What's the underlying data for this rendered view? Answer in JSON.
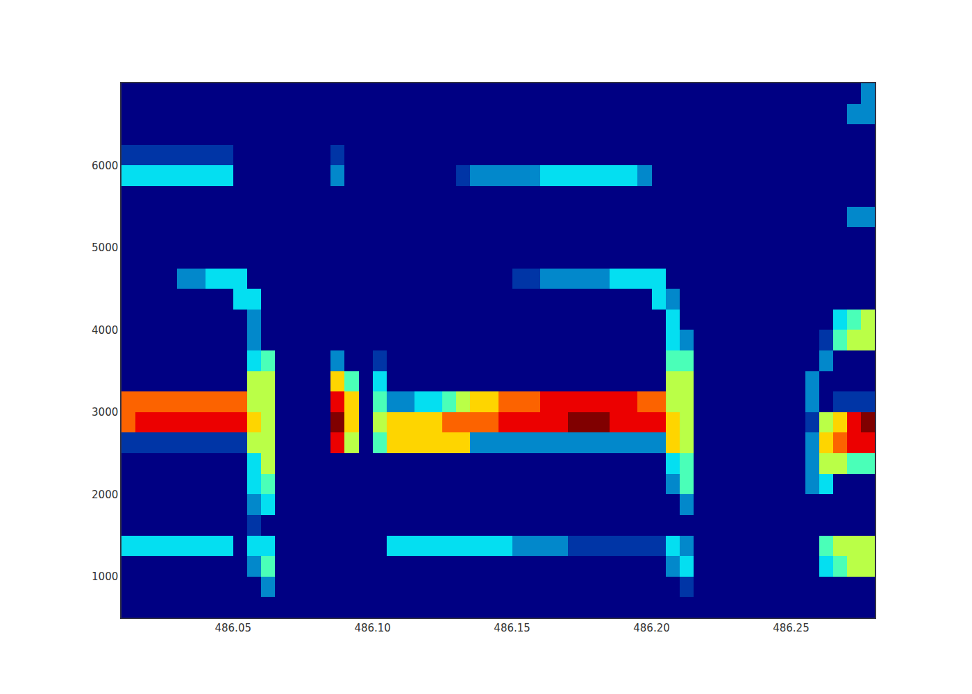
{
  "chart_data": {
    "type": "heatmap",
    "x": [
      486.0125,
      486.0175,
      486.0225,
      486.0275,
      486.0325,
      486.0375,
      486.0425,
      486.0475,
      486.0525,
      486.0575,
      486.0625,
      486.0675,
      486.0725,
      486.0775,
      486.0825,
      486.0875,
      486.0925,
      486.0975,
      486.1025,
      486.1075,
      486.1125,
      486.1175,
      486.1225,
      486.1275,
      486.1325,
      486.1375,
      486.1425,
      486.1475,
      486.1525,
      486.1575,
      486.1625,
      486.1675,
      486.1725,
      486.1775,
      486.1825,
      486.1875,
      486.1925,
      486.1975,
      486.2025,
      486.2075,
      486.2125,
      486.2175,
      486.2225,
      486.2275,
      486.2325,
      486.2375,
      486.2425,
      486.2475,
      486.2525,
      486.2575,
      486.2625,
      486.2675,
      486.2725,
      486.2775
    ],
    "y": [
      625,
      875,
      1125,
      1375,
      1625,
      1875,
      2125,
      2375,
      2625,
      2875,
      3125,
      3375,
      3625,
      3875,
      4125,
      4375,
      4625,
      4875,
      5125,
      5375,
      5625,
      5875,
      6125,
      6375,
      6625,
      6875
    ],
    "z": [
      [
        0,
        0,
        0,
        0,
        0,
        0,
        0,
        0,
        0,
        0,
        0,
        0,
        0,
        0,
        0,
        0,
        0,
        0,
        0,
        0,
        0,
        0,
        0,
        0,
        0,
        0,
        0,
        0,
        0,
        0,
        0,
        0,
        0,
        0,
        0,
        0,
        0,
        0,
        0,
        0,
        0,
        0,
        0,
        0,
        0,
        0,
        0,
        0,
        0,
        0,
        0,
        0,
        0,
        0
      ],
      [
        0,
        0,
        0,
        0,
        0,
        0,
        0,
        0,
        0,
        0,
        2,
        0,
        0,
        0,
        0,
        0,
        0,
        0,
        0,
        0,
        0,
        0,
        0,
        0,
        0,
        0,
        0,
        0,
        0,
        0,
        0,
        0,
        0,
        0,
        0,
        0,
        0,
        0,
        0,
        0,
        1,
        0,
        0,
        0,
        0,
        0,
        0,
        0,
        0,
        0,
        0,
        0,
        0,
        0
      ],
      [
        0,
        0,
        0,
        0,
        0,
        0,
        0,
        0,
        0,
        2,
        4,
        0,
        0,
        0,
        0,
        0,
        0,
        0,
        0,
        0,
        0,
        0,
        0,
        0,
        0,
        0,
        0,
        0,
        0,
        0,
        0,
        0,
        0,
        0,
        0,
        0,
        0,
        0,
        0,
        2,
        3,
        0,
        0,
        0,
        0,
        0,
        0,
        0,
        0,
        0,
        3,
        4,
        5,
        5
      ],
      [
        3,
        3,
        3,
        3,
        3,
        3,
        3,
        3,
        0,
        3,
        3,
        0,
        0,
        0,
        0,
        0,
        0,
        0,
        0,
        3,
        3,
        3,
        3,
        3,
        3,
        3,
        3,
        3,
        2,
        2,
        2,
        2,
        1,
        1,
        1,
        1,
        1,
        1,
        1,
        3,
        2,
        0,
        0,
        0,
        0,
        0,
        0,
        0,
        0,
        0,
        4,
        5,
        5,
        5
      ],
      [
        0,
        0,
        0,
        0,
        0,
        0,
        0,
        0,
        0,
        1,
        0,
        0,
        0,
        0,
        0,
        0,
        0,
        0,
        0,
        0,
        0,
        0,
        0,
        0,
        0,
        0,
        0,
        0,
        0,
        0,
        0,
        0,
        0,
        0,
        0,
        0,
        0,
        0,
        0,
        0,
        0,
        0,
        0,
        0,
        0,
        0,
        0,
        0,
        0,
        0,
        0,
        0,
        0,
        0
      ],
      [
        0,
        0,
        0,
        0,
        0,
        0,
        0,
        0,
        0,
        2,
        3,
        0,
        0,
        0,
        0,
        0,
        0,
        0,
        0,
        0,
        0,
        0,
        0,
        0,
        0,
        0,
        0,
        0,
        0,
        0,
        0,
        0,
        0,
        0,
        0,
        0,
        0,
        0,
        0,
        0,
        2,
        0,
        0,
        0,
        0,
        0,
        0,
        0,
        0,
        0,
        0,
        0,
        0,
        0
      ],
      [
        0,
        0,
        0,
        0,
        0,
        0,
        0,
        0,
        0,
        3,
        4,
        0,
        0,
        0,
        0,
        0,
        0,
        0,
        0,
        0,
        0,
        0,
        0,
        0,
        0,
        0,
        0,
        0,
        0,
        0,
        0,
        0,
        0,
        0,
        0,
        0,
        0,
        0,
        0,
        2,
        4,
        0,
        0,
        0,
        0,
        0,
        0,
        0,
        0,
        2,
        3,
        0,
        0,
        0
      ],
      [
        0,
        0,
        0,
        0,
        0,
        0,
        0,
        0,
        0,
        3,
        5,
        0,
        0,
        0,
        0,
        0,
        0,
        0,
        0,
        0,
        0,
        0,
        0,
        0,
        0,
        0,
        0,
        0,
        0,
        0,
        0,
        0,
        0,
        0,
        0,
        0,
        0,
        0,
        0,
        3,
        4,
        0,
        0,
        0,
        0,
        0,
        0,
        0,
        0,
        2,
        5,
        5,
        4,
        4
      ],
      [
        1,
        1,
        1,
        1,
        1,
        1,
        1,
        1,
        1,
        5,
        5,
        0,
        0,
        0,
        0,
        8,
        5,
        0,
        4,
        6,
        6,
        6,
        6,
        6,
        6,
        2,
        2,
        2,
        2,
        2,
        2,
        2,
        2,
        2,
        2,
        2,
        2,
        2,
        2,
        6,
        5,
        0,
        0,
        0,
        0,
        0,
        0,
        0,
        0,
        2,
        6,
        7,
        8,
        8
      ],
      [
        7,
        8,
        8,
        8,
        8,
        8,
        8,
        8,
        8,
        6,
        5,
        0,
        0,
        0,
        0,
        9,
        6,
        0,
        5,
        6,
        6,
        6,
        6,
        7,
        7,
        7,
        7,
        8,
        8,
        8,
        8,
        8,
        9,
        9,
        9,
        8,
        8,
        8,
        8,
        6,
        5,
        0,
        0,
        0,
        0,
        0,
        0,
        0,
        0,
        1,
        5,
        6,
        8,
        9
      ],
      [
        7,
        7,
        7,
        7,
        7,
        7,
        7,
        7,
        7,
        5,
        5,
        0,
        0,
        0,
        0,
        8,
        6,
        0,
        4,
        2,
        2,
        3,
        3,
        4,
        5,
        6,
        6,
        7,
        7,
        7,
        8,
        8,
        8,
        8,
        8,
        8,
        8,
        7,
        7,
        5,
        5,
        0,
        0,
        0,
        0,
        0,
        0,
        0,
        0,
        2,
        0,
        1,
        1,
        1
      ],
      [
        0,
        0,
        0,
        0,
        0,
        0,
        0,
        0,
        0,
        5,
        5,
        0,
        0,
        0,
        0,
        6,
        4,
        0,
        3,
        0,
        0,
        0,
        0,
        0,
        0,
        0,
        0,
        0,
        0,
        0,
        0,
        0,
        0,
        0,
        0,
        0,
        0,
        0,
        0,
        5,
        5,
        0,
        0,
        0,
        0,
        0,
        0,
        0,
        0,
        2,
        0,
        0,
        0,
        0
      ],
      [
        0,
        0,
        0,
        0,
        0,
        0,
        0,
        0,
        0,
        3,
        4,
        0,
        0,
        0,
        0,
        2,
        0,
        0,
        1,
        0,
        0,
        0,
        0,
        0,
        0,
        0,
        0,
        0,
        0,
        0,
        0,
        0,
        0,
        0,
        0,
        0,
        0,
        0,
        0,
        4,
        4,
        0,
        0,
        0,
        0,
        0,
        0,
        0,
        0,
        0,
        2,
        0,
        0,
        0
      ],
      [
        0,
        0,
        0,
        0,
        0,
        0,
        0,
        0,
        0,
        2,
        0,
        0,
        0,
        0,
        0,
        0,
        0,
        0,
        0,
        0,
        0,
        0,
        0,
        0,
        0,
        0,
        0,
        0,
        0,
        0,
        0,
        0,
        0,
        0,
        0,
        0,
        0,
        0,
        0,
        3,
        2,
        0,
        0,
        0,
        0,
        0,
        0,
        0,
        0,
        0,
        1,
        4,
        5,
        5
      ],
      [
        0,
        0,
        0,
        0,
        0,
        0,
        0,
        0,
        0,
        2,
        0,
        0,
        0,
        0,
        0,
        0,
        0,
        0,
        0,
        0,
        0,
        0,
        0,
        0,
        0,
        0,
        0,
        0,
        0,
        0,
        0,
        0,
        0,
        0,
        0,
        0,
        0,
        0,
        0,
        3,
        0,
        0,
        0,
        0,
        0,
        0,
        0,
        0,
        0,
        0,
        0,
        3,
        4,
        5
      ],
      [
        0,
        0,
        0,
        0,
        0,
        0,
        0,
        0,
        3,
        3,
        0,
        0,
        0,
        0,
        0,
        0,
        0,
        0,
        0,
        0,
        0,
        0,
        0,
        0,
        0,
        0,
        0,
        0,
        0,
        0,
        0,
        0,
        0,
        0,
        0,
        0,
        0,
        0,
        3,
        2,
        0,
        0,
        0,
        0,
        0,
        0,
        0,
        0,
        0,
        0,
        0,
        0,
        0,
        0
      ],
      [
        0,
        0,
        0,
        0,
        2,
        2,
        3,
        3,
        3,
        0,
        0,
        0,
        0,
        0,
        0,
        0,
        0,
        0,
        0,
        0,
        0,
        0,
        0,
        0,
        0,
        0,
        0,
        0,
        1,
        1,
        2,
        2,
        2,
        2,
        2,
        3,
        3,
        3,
        3,
        0,
        0,
        0,
        0,
        0,
        0,
        0,
        0,
        0,
        0,
        0,
        0,
        0,
        0,
        0
      ],
      [
        0,
        0,
        0,
        0,
        0,
        0,
        0,
        0,
        0,
        0,
        0,
        0,
        0,
        0,
        0,
        0,
        0,
        0,
        0,
        0,
        0,
        0,
        0,
        0,
        0,
        0,
        0,
        0,
        0,
        0,
        0,
        0,
        0,
        0,
        0,
        0,
        0,
        0,
        0,
        0,
        0,
        0,
        0,
        0,
        0,
        0,
        0,
        0,
        0,
        0,
        0,
        0,
        0,
        0
      ],
      [
        0,
        0,
        0,
        0,
        0,
        0,
        0,
        0,
        0,
        0,
        0,
        0,
        0,
        0,
        0,
        0,
        0,
        0,
        0,
        0,
        0,
        0,
        0,
        0,
        0,
        0,
        0,
        0,
        0,
        0,
        0,
        0,
        0,
        0,
        0,
        0,
        0,
        0,
        0,
        0,
        0,
        0,
        0,
        0,
        0,
        0,
        0,
        0,
        0,
        0,
        0,
        0,
        0,
        0
      ],
      [
        0,
        0,
        0,
        0,
        0,
        0,
        0,
        0,
        0,
        0,
        0,
        0,
        0,
        0,
        0,
        0,
        0,
        0,
        0,
        0,
        0,
        0,
        0,
        0,
        0,
        0,
        0,
        0,
        0,
        0,
        0,
        0,
        0,
        0,
        0,
        0,
        0,
        0,
        0,
        0,
        0,
        0,
        0,
        0,
        0,
        0,
        0,
        0,
        0,
        0,
        0,
        0,
        2,
        2
      ],
      [
        0,
        0,
        0,
        0,
        0,
        0,
        0,
        0,
        0,
        0,
        0,
        0,
        0,
        0,
        0,
        0,
        0,
        0,
        0,
        0,
        0,
        0,
        0,
        0,
        0,
        0,
        0,
        0,
        0,
        0,
        0,
        0,
        0,
        0,
        0,
        0,
        0,
        0,
        0,
        0,
        0,
        0,
        0,
        0,
        0,
        0,
        0,
        0,
        0,
        0,
        0,
        0,
        0,
        0
      ],
      [
        3,
        3,
        3,
        3,
        3,
        3,
        3,
        3,
        0,
        0,
        0,
        0,
        0,
        0,
        0,
        2,
        0,
        0,
        0,
        0,
        0,
        0,
        0,
        0,
        1,
        2,
        2,
        2,
        2,
        2,
        3,
        3,
        3,
        3,
        3,
        3,
        3,
        2,
        0,
        0,
        0,
        0,
        0,
        0,
        0,
        0,
        0,
        0,
        0,
        0,
        0,
        0,
        0,
        0
      ],
      [
        1,
        1,
        1,
        1,
        1,
        1,
        1,
        1,
        0,
        0,
        0,
        0,
        0,
        0,
        0,
        1,
        0,
        0,
        0,
        0,
        0,
        0,
        0,
        0,
        0,
        0,
        0,
        0,
        0,
        0,
        0,
        0,
        0,
        0,
        0,
        0,
        0,
        0,
        0,
        0,
        0,
        0,
        0,
        0,
        0,
        0,
        0,
        0,
        0,
        0,
        0,
        0,
        0,
        0
      ],
      [
        0,
        0,
        0,
        0,
        0,
        0,
        0,
        0,
        0,
        0,
        0,
        0,
        0,
        0,
        0,
        0,
        0,
        0,
        0,
        0,
        0,
        0,
        0,
        0,
        0,
        0,
        0,
        0,
        0,
        0,
        0,
        0,
        0,
        0,
        0,
        0,
        0,
        0,
        0,
        0,
        0,
        0,
        0,
        0,
        0,
        0,
        0,
        0,
        0,
        0,
        0,
        0,
        0,
        0
      ],
      [
        0,
        0,
        0,
        0,
        0,
        0,
        0,
        0,
        0,
        0,
        0,
        0,
        0,
        0,
        0,
        0,
        0,
        0,
        0,
        0,
        0,
        0,
        0,
        0,
        0,
        0,
        0,
        0,
        0,
        0,
        0,
        0,
        0,
        0,
        0,
        0,
        0,
        0,
        0,
        0,
        0,
        0,
        0,
        0,
        0,
        0,
        0,
        0,
        0,
        0,
        0,
        0,
        2,
        2
      ],
      [
        0,
        0,
        0,
        0,
        0,
        0,
        0,
        0,
        0,
        0,
        0,
        0,
        0,
        0,
        0,
        0,
        0,
        0,
        0,
        0,
        0,
        0,
        0,
        0,
        0,
        0,
        0,
        0,
        0,
        0,
        0,
        0,
        0,
        0,
        0,
        0,
        0,
        0,
        0,
        0,
        0,
        0,
        0,
        0,
        0,
        0,
        0,
        0,
        0,
        0,
        0,
        0,
        0,
        2
      ]
    ],
    "zlim": [
      0,
      9
    ],
    "xlim": [
      486.01,
      486.28
    ],
    "ylim": [
      500,
      7000
    ],
    "xticks": [
      {
        "value": 486.05,
        "label": "486.05"
      },
      {
        "value": 486.1,
        "label": "486.10"
      },
      {
        "value": 486.15,
        "label": "486.15"
      },
      {
        "value": 486.2,
        "label": "486.20"
      },
      {
        "value": 486.25,
        "label": "486.25"
      }
    ],
    "yticks": [
      1000,
      2000,
      3000,
      4000,
      5000,
      6000
    ],
    "grid": false
  }
}
